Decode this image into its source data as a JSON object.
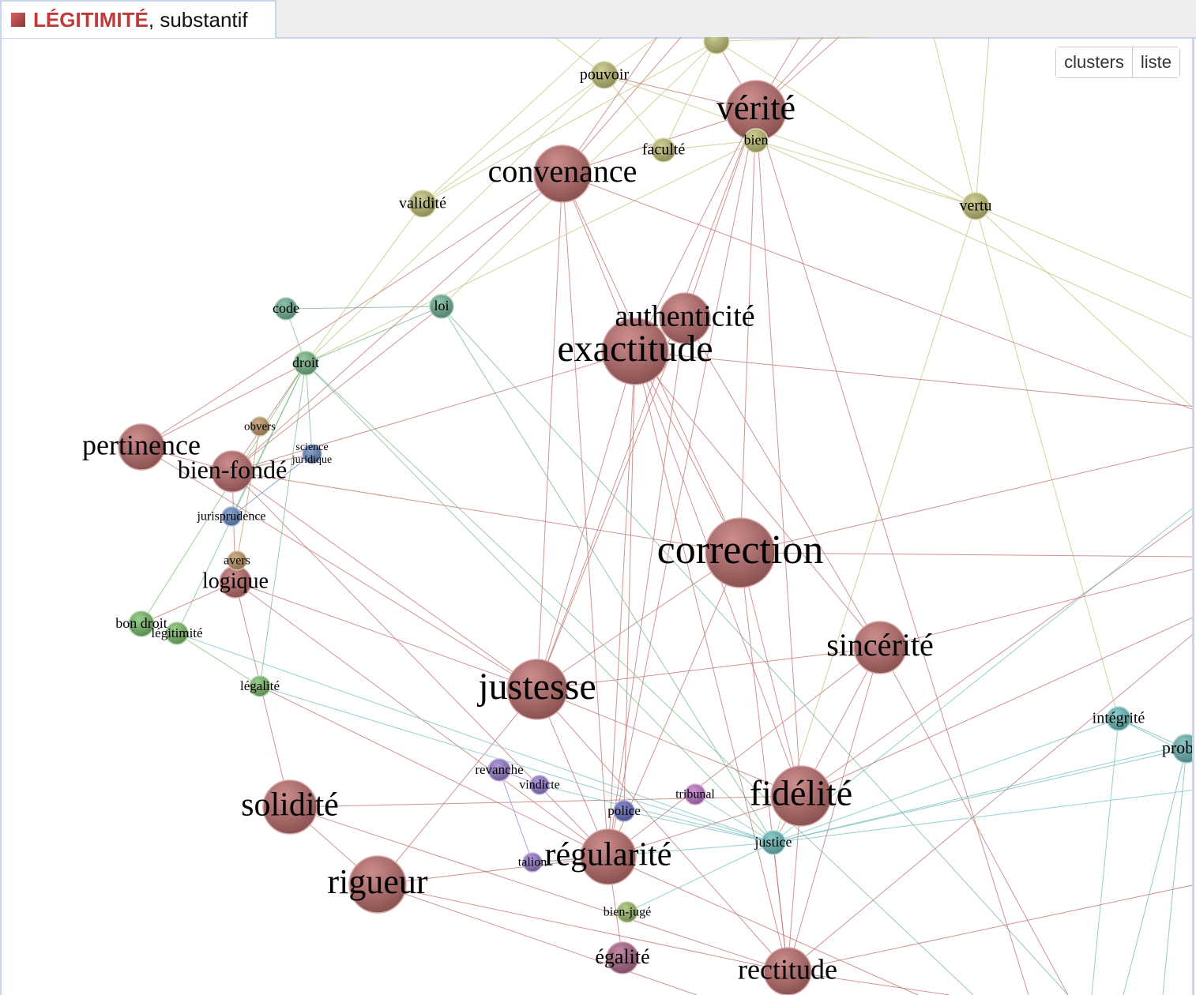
{
  "header": {
    "word": "LÉGITIMITÉ",
    "pos": ", substantif",
    "accent_color": "#c0393b"
  },
  "view_buttons": {
    "clusters": "clusters",
    "liste": "liste"
  },
  "graph": {
    "nodes": [
      {
        "id": "verite",
        "label": "vérité",
        "color": "#c07070"
      },
      {
        "id": "convenance",
        "label": "convenance",
        "color": "#c07070"
      },
      {
        "id": "exactitude",
        "label": "exactitude",
        "color": "#c07070"
      },
      {
        "id": "authenticite",
        "label": "authenticité",
        "color": "#c07070"
      },
      {
        "id": "correction",
        "label": "correction",
        "color": "#c07070"
      },
      {
        "id": "sincerite",
        "label": "sincérité",
        "color": "#c07070"
      },
      {
        "id": "justesse",
        "label": "justesse",
        "color": "#c07070"
      },
      {
        "id": "fidelite",
        "label": "fidélité",
        "color": "#c07070"
      },
      {
        "id": "regularite",
        "label": "régularité",
        "color": "#c07070"
      },
      {
        "id": "rigueur",
        "label": "rigueur",
        "color": "#c07070"
      },
      {
        "id": "solidite",
        "label": "solidité",
        "color": "#c07070"
      },
      {
        "id": "rectitude",
        "label": "rectitude",
        "color": "#c07070"
      },
      {
        "id": "pertinence",
        "label": "pertinence",
        "color": "#c07070"
      },
      {
        "id": "bienfonde",
        "label": "bien-fondé",
        "color": "#c07070"
      },
      {
        "id": "logique",
        "label": "logique",
        "color": "#c07070"
      },
      {
        "id": "egalite",
        "label": "égalité",
        "color": "#b06a8e"
      },
      {
        "id": "pouvoir",
        "label": "pouvoir",
        "color": "#c4c27a"
      },
      {
        "id": "faculte",
        "label": "faculté",
        "color": "#c4c27a"
      },
      {
        "id": "bien",
        "label": "bien",
        "color": "#c4c27a"
      },
      {
        "id": "ptop",
        "label": "",
        "color": "#c4c27a"
      },
      {
        "id": "validite",
        "label": "validité",
        "color": "#c4c27a"
      },
      {
        "id": "vertu",
        "label": "vertu",
        "color": "#c4c27a"
      },
      {
        "id": "code",
        "label": "code",
        "color": "#74b596"
      },
      {
        "id": "loi",
        "label": "loi",
        "color": "#74b596"
      },
      {
        "id": "droit",
        "label": "droit",
        "color": "#7ab98a"
      },
      {
        "id": "obvers",
        "label": "obvers",
        "color": "#c09a6a"
      },
      {
        "id": "sciencejur",
        "label": "science juridique",
        "color": "#6b8fc4"
      },
      {
        "id": "jurisprudence",
        "label": "jurisprudence",
        "color": "#6b8fc4"
      },
      {
        "id": "avers",
        "label": "avers",
        "color": "#c09a6a"
      },
      {
        "id": "bondroit",
        "label": "bon droit",
        "color": "#7fc070"
      },
      {
        "id": "legitimite",
        "label": "légitimité",
        "color": "#7fc070"
      },
      {
        "id": "legalite",
        "label": "légalité",
        "color": "#7fc070"
      },
      {
        "id": "revanche",
        "label": "revanche",
        "color": "#9a7fcf"
      },
      {
        "id": "vindicte",
        "label": "vindicte",
        "color": "#9a7fcf"
      },
      {
        "id": "police",
        "label": "police",
        "color": "#6a6fbf"
      },
      {
        "id": "talion",
        "label": "talion",
        "color": "#9a7fcf"
      },
      {
        "id": "tribunal",
        "label": "tribunal",
        "color": "#c07ac8"
      },
      {
        "id": "justice",
        "label": "justice",
        "color": "#70c0c0"
      },
      {
        "id": "bienjuge",
        "label": "bien-jugé",
        "color": "#a0c070"
      },
      {
        "id": "integrite",
        "label": "intégrité",
        "color": "#70c0c0"
      },
      {
        "id": "probite",
        "label": "probité",
        "color": "#70b8b8"
      }
    ],
    "edges": [
      [
        "verite",
        "exactitude"
      ],
      [
        "verite",
        "authenticite"
      ],
      [
        "verite",
        "correction"
      ],
      [
        "verite",
        "fidelite"
      ],
      [
        "verite",
        "justesse"
      ],
      [
        "verite",
        "convenance"
      ],
      [
        "verite",
        "regularite"
      ],
      [
        "convenance",
        "exactitude"
      ],
      [
        "convenance",
        "justesse"
      ],
      [
        "convenance",
        "regularite"
      ],
      [
        "convenance",
        "pertinence"
      ],
      [
        "convenance",
        "bienfonde"
      ],
      [
        "convenance",
        "correction"
      ],
      [
        "exactitude",
        "justesse"
      ],
      [
        "exactitude",
        "correction"
      ],
      [
        "exactitude",
        "fidelite"
      ],
      [
        "exactitude",
        "regularite"
      ],
      [
        "exactitude",
        "sincerite"
      ],
      [
        "exactitude",
        "bienfonde"
      ],
      [
        "exactitude",
        "rectitude"
      ],
      [
        "exactitude",
        "police"
      ],
      [
        "authenticite",
        "justesse"
      ],
      [
        "authenticite",
        "sincerite"
      ],
      [
        "authenticite",
        "regularite"
      ],
      [
        "correction",
        "justesse"
      ],
      [
        "correction",
        "bienfonde"
      ],
      [
        "correction",
        "fidelite"
      ],
      [
        "correction",
        "rectitude"
      ],
      [
        "correction",
        "regularite"
      ],
      [
        "sincerite",
        "justesse"
      ],
      [
        "sincerite",
        "fidelite"
      ],
      [
        "sincerite",
        "regularite"
      ],
      [
        "sincerite",
        "rectitude"
      ],
      [
        "justesse",
        "bienfonde"
      ],
      [
        "justesse",
        "logique"
      ],
      [
        "justesse",
        "rigueur"
      ],
      [
        "justesse",
        "fidelite"
      ],
      [
        "justesse",
        "regularite"
      ],
      [
        "justesse",
        "rectitude"
      ],
      [
        "justesse",
        "pertinence"
      ],
      [
        "fidelite",
        "solidite"
      ],
      [
        "fidelite",
        "regularite"
      ],
      [
        "fidelite",
        "rectitude"
      ],
      [
        "regularite",
        "rigueur"
      ],
      [
        "regularite",
        "logique"
      ],
      [
        "regularite",
        "egalite"
      ],
      [
        "regularite",
        "talion"
      ],
      [
        "rigueur",
        "solidite"
      ],
      [
        "rigueur",
        "rectitude"
      ],
      [
        "solidite",
        "logique"
      ],
      [
        "solidite",
        "rectitude"
      ],
      [
        "pertinence",
        "bienfonde"
      ],
      [
        "pertinence",
        "droit"
      ],
      [
        "bienfonde",
        "logique"
      ],
      [
        "bienfonde",
        "sciencejur"
      ],
      [
        "bienfonde",
        "droit"
      ],
      [
        "bienfonde",
        "loi"
      ],
      [
        "bienfonde",
        "regularite"
      ],
      [
        "logique",
        "bondroit"
      ],
      [
        "pouvoir",
        "faculte"
      ],
      [
        "pouvoir",
        "verite"
      ],
      [
        "pouvoir",
        "droit"
      ],
      [
        "pouvoir",
        "vertu"
      ],
      [
        "pouvoir",
        "validite"
      ],
      [
        "faculte",
        "bien"
      ],
      [
        "faculte",
        "ptop"
      ],
      [
        "bien",
        "vertu"
      ],
      [
        "ptop",
        "verite"
      ],
      [
        "ptop",
        "vertu"
      ],
      [
        "validite",
        "droit"
      ],
      [
        "validite",
        "ptop"
      ],
      [
        "vertu",
        "justice"
      ],
      [
        "vertu",
        "integrite"
      ],
      [
        "bien",
        "droit"
      ],
      [
        "code",
        "loi"
      ],
      [
        "code",
        "droit"
      ],
      [
        "loi",
        "droit"
      ],
      [
        "loi",
        "justice"
      ],
      [
        "loi",
        "ptop"
      ],
      [
        "droit",
        "jurisprudence"
      ],
      [
        "droit",
        "legitimite"
      ],
      [
        "droit",
        "legalite"
      ],
      [
        "droit",
        "justice"
      ],
      [
        "droit",
        "sciencejur"
      ],
      [
        "droit",
        "bondroit"
      ],
      [
        "obvers",
        "avers"
      ],
      [
        "jurisprudence",
        "sciencejur"
      ],
      [
        "legitimite",
        "justice"
      ],
      [
        "legitimite",
        "legalite"
      ],
      [
        "legalite",
        "justice"
      ],
      [
        "legalite",
        "regularite"
      ],
      [
        "revanche",
        "vindicte"
      ],
      [
        "revanche",
        "talion"
      ],
      [
        "vindicte",
        "justice"
      ],
      [
        "police",
        "justice"
      ],
      [
        "tribunal",
        "justice"
      ],
      [
        "talion",
        "justice"
      ],
      [
        "bienjuge",
        "justice"
      ],
      [
        "justice",
        "integrite"
      ],
      [
        "justice",
        "probite"
      ],
      [
        "justice",
        "rectitude"
      ],
      [
        "justice",
        "fidelite"
      ],
      [
        "integrite",
        "probite"
      ]
    ]
  }
}
